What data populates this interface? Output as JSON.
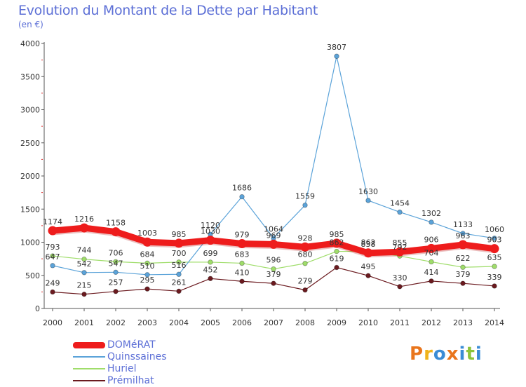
{
  "title": "Evolution du Montant de la Dette par Habitant",
  "subtitle": "(en €)",
  "logo": {
    "letters": [
      "P",
      "r",
      "o",
      "x",
      "i",
      "t",
      "i"
    ],
    "colors": [
      "#e9751c",
      "#f0b31b",
      "#3a8cd6",
      "#e9751c",
      "#3a8cd6",
      "#8cc43b",
      "#3a8cd6"
    ]
  },
  "chart_data": {
    "type": "line",
    "x": [
      2000,
      2001,
      2002,
      2003,
      2004,
      2005,
      2006,
      2007,
      2008,
      2009,
      2010,
      2011,
      2012,
      2013,
      2014
    ],
    "ylim": [
      0,
      4000
    ],
    "yticks": [
      0,
      500,
      1000,
      1500,
      2000,
      2500,
      3000,
      3500,
      4000
    ],
    "grid": false,
    "legend_position": "bottom-left",
    "series": [
      {
        "name": "DOMéRAT",
        "color": "#ee1c1c",
        "width": 9,
        "values": [
          1174,
          1216,
          1158,
          1003,
          985,
          1030,
          979,
          969,
          928,
          985,
          838,
          855,
          906,
          963,
          903
        ],
        "labels": [
          "1174",
          "1216",
          "1158",
          "1003",
          "985",
          "1030",
          "979",
          "969",
          "928",
          "985",
          "838",
          "855",
          "906",
          "963",
          "903"
        ]
      },
      {
        "name": "Quinssaines",
        "color": "#5ba3d9",
        "width": 1.2,
        "values": [
          647,
          542,
          547,
          510,
          516,
          1120,
          1686,
          1064,
          1559,
          3807,
          1630,
          1454,
          1302,
          1133,
          1060
        ],
        "labels": [
          "647",
          "542",
          "547",
          "510",
          "516",
          "1120",
          "1686",
          "1064",
          "1559",
          "3807",
          "1630",
          "1454",
          "1302",
          "1133",
          "1060"
        ]
      },
      {
        "name": "Huriel",
        "color": "#9fdd6a",
        "width": 1.2,
        "values": [
          793,
          744,
          706,
          684,
          700,
          699,
          683,
          596,
          680,
          862,
          862,
          792,
          704,
          622,
          635
        ],
        "labels": [
          "793",
          "744",
          "706",
          "684",
          "700",
          "699",
          "683",
          "596",
          "680",
          "862",
          "862",
          "792",
          "704",
          "622",
          "635"
        ]
      },
      {
        "name": "Prémilhat",
        "color": "#6b1a1f",
        "width": 1.2,
        "values": [
          249,
          215,
          257,
          295,
          261,
          452,
          410,
          379,
          279,
          619,
          495,
          330,
          414,
          379,
          339
        ],
        "labels": [
          "249",
          "215",
          "257",
          "295",
          "261",
          "452",
          "410",
          "379",
          "279",
          "619",
          "495",
          "330",
          "414",
          "379",
          "339"
        ]
      }
    ]
  }
}
